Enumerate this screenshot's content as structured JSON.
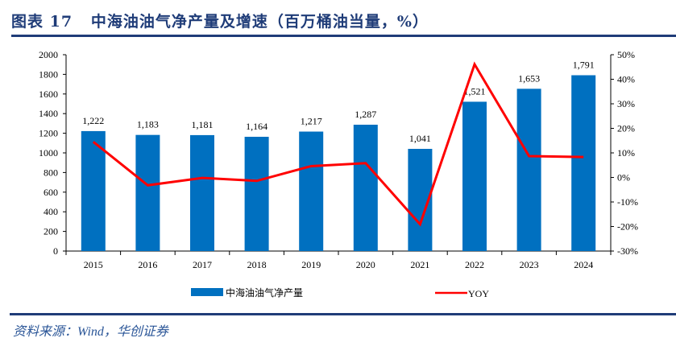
{
  "title": "图表 17   中海油油气净产量及增速（百万桶油当量，%）",
  "source": "资料来源：Wind，华创证券",
  "colors": {
    "bar": "#0070c0",
    "line": "#ff0000",
    "title": "#1f3c78"
  },
  "chart_data": {
    "type": "bar+line",
    "categories": [
      "2015",
      "2016",
      "2017",
      "2018",
      "2019",
      "2020",
      "2021",
      "2022",
      "2023",
      "2024"
    ],
    "series": [
      {
        "name": "中海油油气净产量",
        "type": "bar",
        "axis": "left",
        "values": [
          1222,
          1183,
          1181,
          1164,
          1217,
          1287,
          1041,
          1521,
          1653,
          1791
        ],
        "labels": [
          "1,222",
          "1,183",
          "1,181",
          "1,164",
          "1,217",
          "1,287",
          "1,041",
          "1,521",
          "1,653",
          "1,791"
        ]
      },
      {
        "name": "YOY",
        "type": "line",
        "axis": "right",
        "values": [
          14.5,
          -3.2,
          -0.2,
          -1.4,
          4.6,
          5.8,
          -19.1,
          46.1,
          8.7,
          8.3
        ]
      }
    ],
    "y_left": {
      "min": 0,
      "max": 2000,
      "ticks": [
        0,
        200,
        400,
        600,
        800,
        1000,
        1200,
        1400,
        1600,
        1800,
        2000
      ]
    },
    "y_right": {
      "min": -30,
      "max": 50,
      "ticks": [
        "-30%",
        "-20%",
        "-10%",
        "0%",
        "10%",
        "20%",
        "30%",
        "40%",
        "50%"
      ]
    },
    "legend_position": "bottom",
    "grid": false
  }
}
